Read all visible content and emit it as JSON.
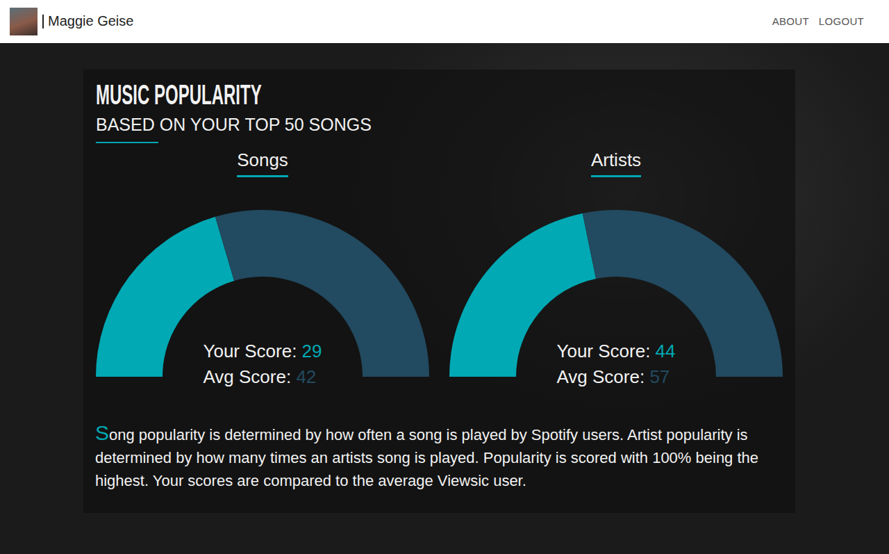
{
  "header": {
    "name": "Maggie Geise",
    "nav": [
      "ABOUT",
      "LOGOUT"
    ]
  },
  "panel": {
    "title": "MUSIC POPULARITY",
    "subtitle": "BASED ON YOUR TOP 50 SONGS",
    "text": "Song popularity is determined by how often a song is played by Spotify users. Artist popularity is determined by how many times an artists song is played. Popularity is scored with 100% being the highest. Your scores are compared to the average Viewsic user."
  },
  "chart_data": [
    {
      "type": "pie",
      "title": "Songs",
      "categories": [
        "Your Score:",
        "Avg Score:"
      ],
      "values": [
        29,
        42
      ],
      "colors": [
        "#00a9b4",
        "#224a60"
      ]
    },
    {
      "type": "pie",
      "title": "Artists",
      "categories": [
        "Your Score:",
        "Avg Score:"
      ],
      "values": [
        44,
        57
      ],
      "colors": [
        "#00a9b4",
        "#224a60"
      ]
    }
  ]
}
